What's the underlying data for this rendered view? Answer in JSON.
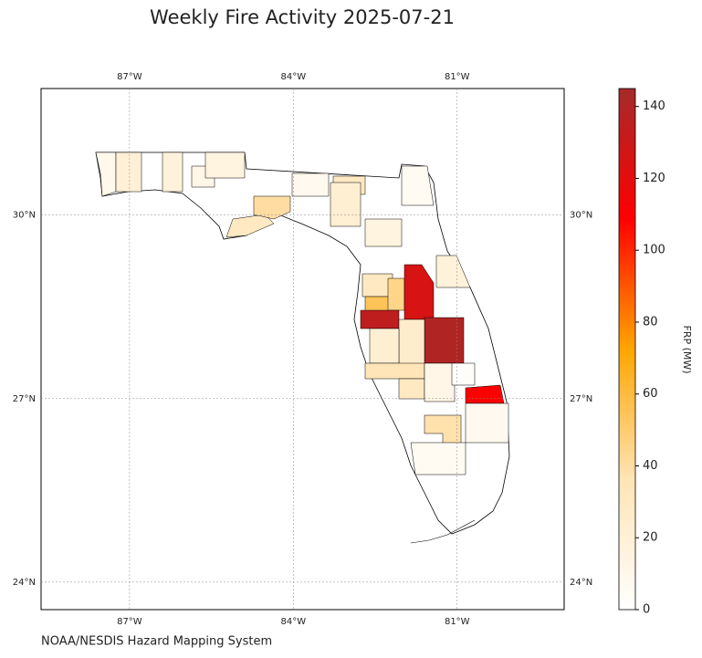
{
  "map": {
    "title": "Weekly Fire Activity 2025-07-21",
    "source": "NOAA/NESDIS Hazard Mapping System",
    "colorbar_label": "FRP (MW)",
    "xlim": [
      -88.62,
      -79.04
    ],
    "ylim": [
      23.55,
      32.07
    ],
    "xticks": [
      {
        "value": -87,
        "label": "87°W"
      },
      {
        "value": -84,
        "label": "84°W"
      },
      {
        "value": -81,
        "label": "81°W"
      }
    ],
    "yticks": [
      {
        "value": 24,
        "label": "24°N"
      },
      {
        "value": 27,
        "label": "27°N"
      },
      {
        "value": 30,
        "label": "30°N"
      }
    ],
    "grid": true,
    "colormap": [
      "#ffffff",
      "#ffe4b5",
      "#ffa500",
      "#ff0000",
      "#a52a2a"
    ],
    "clim": [
      0,
      145
    ],
    "cticks": [
      0,
      20,
      40,
      60,
      80,
      100,
      120,
      140
    ],
    "regions": [
      {
        "value": 10
      },
      {
        "value": 20
      },
      {
        "value": 18
      },
      {
        "value": 12
      },
      {
        "value": 15
      },
      {
        "value": 30
      },
      {
        "value": 40
      },
      {
        "value": 8
      },
      {
        "value": 30
      },
      {
        "value": 22
      },
      {
        "value": 15
      },
      {
        "value": 6
      },
      {
        "value": 18
      },
      {
        "value": 30
      },
      {
        "value": 55
      },
      {
        "value": 45
      },
      {
        "value": 125
      },
      {
        "value": 135
      },
      {
        "value": 140
      },
      {
        "value": 25
      },
      {
        "value": 22
      },
      {
        "value": 35
      },
      {
        "value": 30
      },
      {
        "value": 12
      },
      {
        "value": 110
      },
      {
        "value": 38
      },
      {
        "value": 8
      },
      {
        "value": 6
      },
      {
        "value": 3
      }
    ]
  }
}
